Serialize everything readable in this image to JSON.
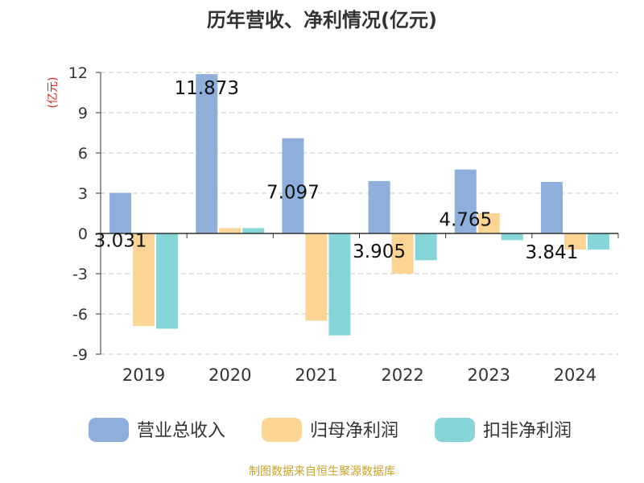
{
  "chart_data": {
    "type": "bar",
    "title": "历年营收、净利情况(亿元)",
    "ylabel": "(亿元)",
    "categories": [
      "2019",
      "2020",
      "2021",
      "2022",
      "2023",
      "2024"
    ],
    "ylim": [
      -9,
      12
    ],
    "yticks": [
      12,
      9,
      6,
      3,
      0,
      -3,
      -6,
      -9
    ],
    "grid": true,
    "legend_position": "bottom",
    "series": [
      {
        "name": "营业总收入",
        "color": "#8eaedb",
        "values": [
          3.031,
          11.873,
          7.097,
          3.905,
          4.765,
          3.841
        ],
        "data_labels": [
          "3.031",
          "11.873",
          "7.097",
          "3.905",
          "4.765",
          "3.841"
        ]
      },
      {
        "name": "归母净利润",
        "color": "#fcd595",
        "values": [
          -6.9,
          0.4,
          -6.5,
          -3.0,
          1.5,
          -1.2
        ]
      },
      {
        "name": "扣非净利润",
        "color": "#86d5d9",
        "values": [
          -7.1,
          0.4,
          -7.6,
          -2.0,
          -0.5,
          -1.2
        ]
      }
    ]
  },
  "footer": {
    "source": "制图数据来自恒生聚源数据库"
  },
  "colors": {
    "title": "#333333",
    "axis_label": "#e02020",
    "source": "#c9a227"
  }
}
